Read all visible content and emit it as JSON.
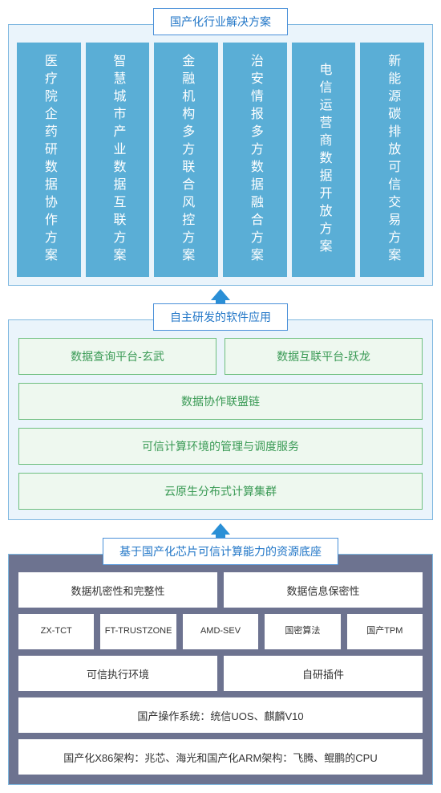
{
  "colors": {
    "title_border": "#4a90d9",
    "title_text": "#2176c7",
    "top_bg": "#eaf4fb",
    "top_border": "#7fb8e0",
    "vert_box_bg": "#5aaed6",
    "arrow": "#2a8fd6",
    "green_border": "#6fbf7f",
    "green_bg": "#eef8ef",
    "green_text": "#3a9a55",
    "bot_bg": "#6d7390",
    "white_box_bg": "#ffffff"
  },
  "top": {
    "title": "国产化行业解决方案",
    "items": [
      "医疗院企药研数据协作方案",
      "智慧城市产业数据互联方案",
      "金融机构多方联合风控方案",
      "治安情报多方数据融合方案",
      "电信运营商数据开放方案",
      "新能源碳排放可信交易方案"
    ]
  },
  "mid": {
    "title": "自主研发的软件应用",
    "row1": [
      "数据查询平台-玄武",
      "数据互联平台-跃龙"
    ],
    "row2": "数据协作联盟链",
    "row3": "可信计算环境的管理与调度服务",
    "row4": "云原生分布式计算集群"
  },
  "bot": {
    "title": "基于国产化芯片可信计算能力的资源底座",
    "row1": [
      "数据机密性和完整性",
      "数据信息保密性"
    ],
    "row2": [
      "ZX-TCT",
      "FT-TRUSTZONE",
      "AMD-SEV",
      "国密算法",
      "国产TPM"
    ],
    "row3": [
      "可信执行环境",
      "自研插件"
    ],
    "row4": "国产操作系统：统信UOS、麒麟V10",
    "row5": "国产化X86架构：兆芯、海光和国产化ARM架构：飞腾、鲲鹏的CPU"
  }
}
